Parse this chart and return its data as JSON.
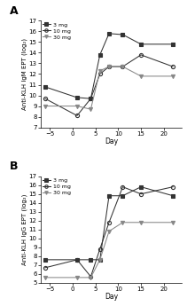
{
  "days": [
    -6,
    1,
    4,
    6,
    8,
    11,
    15,
    22
  ],
  "panel_A": {
    "title": "A",
    "ylabel": "Anti-KLH IgM EPT (log₂)",
    "xlabel": "Day",
    "ylim": [
      7,
      17
    ],
    "yticks": [
      7,
      8,
      9,
      10,
      11,
      12,
      13,
      14,
      15,
      16,
      17
    ],
    "xlim": [
      -7,
      24
    ],
    "xticks": [
      -5,
      0,
      5,
      10,
      15,
      20
    ],
    "series": [
      {
        "label": "3 mg",
        "marker": "s",
        "fillstyle": "full",
        "color": "#333333",
        "values": [
          10.8,
          9.8,
          9.7,
          13.8,
          15.8,
          15.7,
          14.8,
          14.8
        ]
      },
      {
        "label": "10 mg",
        "marker": "o",
        "fillstyle": "none",
        "color": "#333333",
        "values": [
          9.7,
          8.1,
          9.7,
          12.0,
          12.7,
          12.7,
          13.8,
          12.7
        ]
      },
      {
        "label": "30 mg",
        "marker": "v",
        "fillstyle": "full",
        "color": "#888888",
        "values": [
          9.0,
          9.0,
          8.7,
          12.3,
          12.7,
          12.7,
          11.8,
          11.8
        ]
      }
    ]
  },
  "panel_B": {
    "title": "B",
    "ylabel": "Anti-KLH IgG EPT (log₂)",
    "xlabel": "Day",
    "ylim": [
      5,
      17
    ],
    "yticks": [
      5,
      6,
      7,
      8,
      9,
      10,
      11,
      12,
      13,
      14,
      15,
      16,
      17
    ],
    "xlim": [
      -7,
      24
    ],
    "xticks": [
      -5,
      0,
      5,
      10,
      15,
      20
    ],
    "series": [
      {
        "label": "3 mg",
        "marker": "s",
        "fillstyle": "full",
        "color": "#333333",
        "values": [
          7.6,
          7.6,
          7.6,
          7.6,
          14.8,
          14.8,
          15.8,
          14.8
        ]
      },
      {
        "label": "10 mg",
        "marker": "o",
        "fillstyle": "none",
        "color": "#333333",
        "values": [
          6.7,
          7.6,
          5.7,
          8.8,
          11.8,
          15.8,
          15.0,
          15.8
        ]
      },
      {
        "label": "30 mg",
        "marker": "v",
        "fillstyle": "full",
        "color": "#888888",
        "values": [
          5.6,
          5.6,
          5.6,
          7.6,
          10.8,
          11.8,
          11.8,
          11.8
        ]
      }
    ]
  }
}
